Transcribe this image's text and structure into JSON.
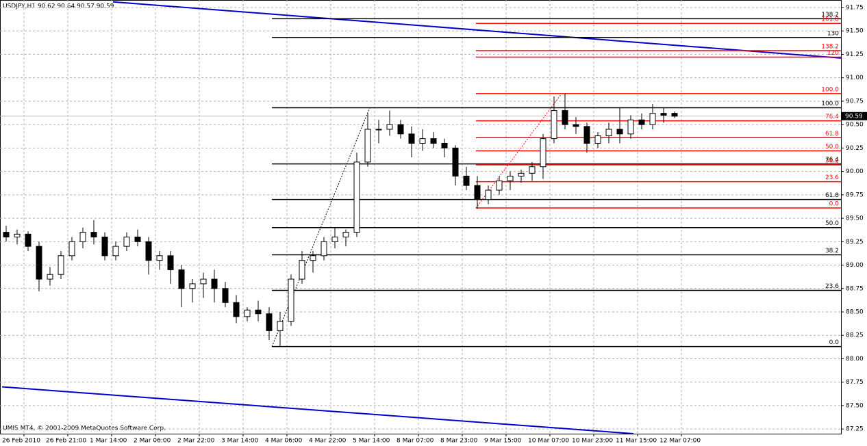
{
  "chart_data": {
    "type": "candlestick",
    "title": "USDJPY,H1  90.62 90.64 90.57 90.59",
    "footer": "UMIS MT4, © 2001-2009 MetaQuotes Software Corp.",
    "open": [
      89.35,
      89.3,
      89.33,
      89.2,
      88.85,
      88.9,
      89.1,
      89.25,
      89.35,
      89.3,
      89.1,
      89.2,
      89.3,
      89.25,
      89.05,
      89.1,
      88.95,
      88.75,
      88.8,
      88.85,
      88.75,
      88.6,
      88.45,
      88.52,
      88.48,
      88.3,
      88.4,
      88.85,
      89.05,
      89.1,
      89.25,
      89.3,
      89.35,
      90.1,
      90.45,
      90.45,
      90.5,
      90.4,
      90.3,
      90.35,
      90.3,
      90.25,
      89.95,
      89.85,
      89.7,
      89.8,
      89.9,
      89.95,
      89.98,
      90.05,
      90.35,
      90.65,
      90.5,
      90.48,
      90.3,
      90.38,
      90.45,
      90.4,
      90.55,
      90.5,
      90.62,
      90.62
    ],
    "high": [
      89.42,
      89.38,
      89.36,
      89.25,
      88.98,
      89.15,
      89.3,
      89.4,
      89.48,
      89.35,
      89.25,
      89.35,
      89.38,
      89.3,
      89.15,
      89.15,
      89.0,
      88.85,
      88.92,
      88.95,
      88.82,
      88.68,
      88.55,
      88.62,
      88.55,
      88.5,
      88.9,
      89.15,
      89.15,
      89.3,
      89.4,
      89.38,
      90.2,
      90.62,
      90.55,
      90.65,
      90.55,
      90.48,
      90.45,
      90.42,
      90.35,
      90.28,
      90.05,
      89.95,
      89.85,
      89.95,
      90.0,
      90.02,
      90.1,
      90.4,
      90.8,
      90.83,
      90.58,
      90.52,
      90.42,
      90.52,
      90.68,
      90.6,
      90.62,
      90.72,
      90.68,
      90.64
    ],
    "low": [
      89.25,
      89.22,
      89.15,
      88.72,
      88.78,
      88.85,
      89.05,
      89.18,
      89.22,
      89.05,
      89.05,
      89.15,
      89.2,
      88.9,
      88.95,
      88.8,
      88.55,
      88.6,
      88.65,
      88.6,
      88.55,
      88.38,
      88.4,
      88.4,
      88.2,
      88.13,
      88.35,
      88.8,
      88.92,
      89.05,
      89.18,
      89.2,
      89.3,
      90.05,
      90.3,
      90.38,
      90.35,
      90.15,
      90.22,
      90.25,
      90.15,
      89.85,
      89.8,
      89.6,
      89.65,
      89.75,
      89.8,
      89.88,
      89.9,
      89.92,
      90.3,
      90.45,
      90.4,
      90.2,
      90.25,
      90.3,
      90.3,
      90.35,
      90.45,
      90.45,
      90.52,
      90.57
    ],
    "close": [
      89.3,
      89.33,
      89.2,
      88.85,
      88.9,
      89.1,
      89.25,
      89.35,
      89.3,
      89.1,
      89.2,
      89.3,
      89.25,
      89.05,
      89.1,
      88.95,
      88.75,
      88.8,
      88.85,
      88.75,
      88.6,
      88.45,
      88.52,
      88.48,
      88.3,
      88.4,
      88.85,
      89.05,
      89.1,
      89.25,
      89.3,
      89.35,
      90.1,
      90.45,
      90.45,
      90.5,
      90.4,
      90.3,
      90.35,
      90.3,
      90.25,
      89.95,
      89.85,
      89.7,
      89.8,
      89.9,
      89.95,
      89.98,
      90.05,
      90.35,
      90.65,
      90.5,
      90.48,
      90.3,
      90.38,
      90.45,
      90.4,
      90.55,
      90.5,
      90.62,
      90.6,
      90.59
    ],
    "bull_color": "#ffffff",
    "bear_color": "#000000",
    "wick_color": "#000000",
    "xlabels": [
      "26 Feb 2010",
      "26 Feb 21:00",
      "1 Mar 14:00",
      "2 Mar 06:00",
      "2 Mar 22:00",
      "3 Mar 14:00",
      "4 Mar 06:00",
      "4 Mar 22:00",
      "5 Mar 14:00",
      "8 Mar 07:00",
      "8 Mar 23:00",
      "9 Mar 15:00",
      "10 Mar 07:00",
      "10 Mar 23:00",
      "11 Mar 15:00",
      "12 Mar 07:00"
    ],
    "ylim": [
      87.2,
      91.83
    ],
    "yticks": [
      87.25,
      {
        "value": 87.5,
        "label": "87.50"
      },
      87.75,
      {
        "value": 88,
        "label": "88.00"
      },
      88.25,
      {
        "value": 88.5,
        "label": "88.50"
      },
      88.75,
      {
        "value": 89,
        "label": "89.00"
      },
      89.25,
      {
        "value": 89.5,
        "label": "89.50"
      },
      89.75,
      {
        "value": 90,
        "label": "90.00"
      },
      90.25,
      {
        "value": 90.5,
        "label": "90.50"
      },
      90.75,
      {
        "value": 91,
        "label": "91.00"
      },
      91.25,
      {
        "value": 91.5,
        "label": "91.50"
      },
      91.75
    ],
    "grid": true,
    "last_price": 90.59,
    "fibo": [
      {
        "color": "#000000",
        "levels": [
          {
            "label": "0.0",
            "price": 88.13
          },
          {
            "label": "23.6",
            "price": 88.73
          },
          {
            "label": "38.2",
            "price": 89.11
          },
          {
            "label": "50.0",
            "price": 89.4
          },
          {
            "label": "61.8",
            "price": 89.7
          },
          {
            "label": "76.4",
            "price": 90.08
          },
          {
            "label": "100.0",
            "price": 90.68
          },
          {
            "label": "130",
            "price": 91.43
          },
          {
            "label": "138.2",
            "price": 91.63
          }
        ]
      },
      {
        "color": "#ff0000",
        "levels": [
          {
            "label": "0.0",
            "price": 89.61
          },
          {
            "label": "23.6",
            "price": 89.89
          },
          {
            "label": "38.2",
            "price": 90.07
          },
          {
            "label": "50.0",
            "price": 90.22
          },
          {
            "label": "61.8",
            "price": 90.36
          },
          {
            "label": "76.4",
            "price": 90.54
          },
          {
            "label": "100.0",
            "price": 90.83
          },
          {
            "label": "120",
            "price": 91.22
          },
          {
            "label": "138.2",
            "price": 91.29
          },
          {
            "label": "161.8",
            "price": 91.58
          }
        ]
      }
    ],
    "trendlines": [
      {
        "color": "#0000cc",
        "prices": [
          91.81,
          91.21
        ]
      },
      {
        "color": "#0000cc",
        "prices": [
          87.7,
          87.2
        ]
      }
    ]
  }
}
